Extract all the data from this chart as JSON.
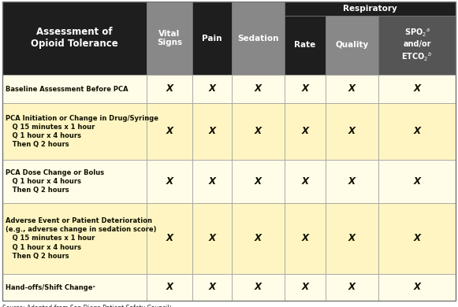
{
  "header_bg_dark": "#1e1e1e",
  "header_bg_gray_vs": "#888888",
  "header_bg_gray_sed": "#888888",
  "header_bg_gray_qual": "#888888",
  "header_bg_dark_pain": "#1e1e1e",
  "header_bg_dark_rate": "#1e1e1e",
  "header_bg_dark_spo2": "#555555",
  "row_bg_yellow": "#fef5c3",
  "row_bg_white": "#fef5c3",
  "rows": [
    {
      "label": "Baseline Assessment Before PCA",
      "sublabel": "",
      "checks": [
        true,
        true,
        true,
        true,
        true,
        true
      ],
      "bg": "#fffde8"
    },
    {
      "label": "PCA Initiation or Change in Drug/Syringe",
      "sublabel": "   Q 15 minutes x 1 hour\n   Q 1 hour x 4 hours\n   Then Q 2 hours",
      "checks": [
        true,
        true,
        true,
        true,
        true,
        true
      ],
      "bg": "#fef5c3"
    },
    {
      "label": "PCA Dose Change or Bolus",
      "sublabel": "   Q 1 hour x 4 hours\n   Then Q 2 hours",
      "checks": [
        true,
        true,
        true,
        true,
        true,
        true
      ],
      "bg": "#fffde8"
    },
    {
      "label": "Adverse Event or Patient Deterioration\n(e.g., adverse change in sedation score)",
      "sublabel": "   Q 15 minutes x 1 hour\n   Q 1 hour x 4 hours\n   Then Q 2 hours",
      "checks": [
        true,
        true,
        true,
        true,
        true,
        true
      ],
      "bg": "#fef5c3"
    },
    {
      "label": "Hand-offs/Shift Changeᶜ",
      "sublabel": "",
      "checks": [
        true,
        true,
        true,
        true,
        true,
        true
      ],
      "bg": "#fffde8"
    }
  ]
}
